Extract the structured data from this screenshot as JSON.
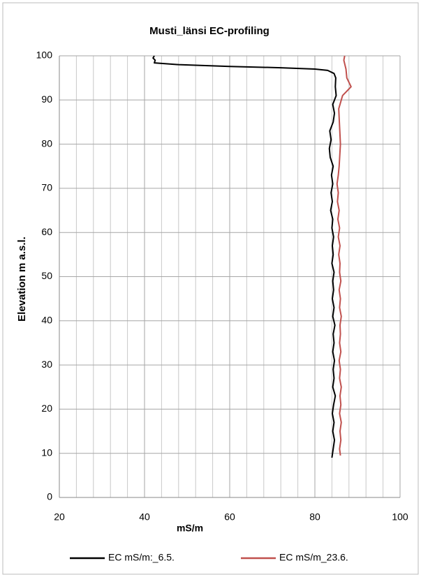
{
  "chart_data": {
    "type": "line",
    "title": "Musti_länsi EC-profiling",
    "x_label": "mS/m",
    "y_label": "Elevation m a.s.l.",
    "xlim": [
      20,
      100
    ],
    "xticks": [
      20,
      40,
      60,
      80,
      100
    ],
    "x_minor_grid": [
      24,
      28,
      32,
      36,
      44,
      48,
      52,
      56,
      64,
      68,
      72,
      76,
      84,
      88,
      92,
      96
    ],
    "ylim": [
      0,
      100
    ],
    "yticks": [
      0,
      10,
      20,
      30,
      40,
      50,
      60,
      70,
      80,
      90,
      100
    ],
    "grid": true,
    "legend": "bottom",
    "series": [
      {
        "name": "EC mS/m:_6.5.",
        "color": "#000000",
        "x": [
          84,
          84.3,
          84.6,
          84.2,
          84.5,
          84.1,
          84.4,
          84.8,
          84.2,
          84.5,
          84.3,
          84.6,
          84.2,
          84.5,
          84.3,
          84.7,
          84.2,
          84.5,
          84.1,
          84.4,
          84.2,
          84.5,
          84.0,
          84.3,
          84.1,
          84.4,
          84.0,
          84.2,
          83.7,
          84.1,
          83.8,
          84.2,
          83.9,
          84.3,
          83.6,
          83.4,
          83.8,
          83.5,
          84.3,
          84.6,
          84.2,
          85.0,
          84.8,
          84.9,
          84.5,
          83,
          80,
          72,
          60,
          48,
          42.3,
          42.5,
          42.0,
          42.3
        ],
        "y": [
          9,
          11,
          13,
          15,
          17,
          19,
          21,
          23,
          25,
          27,
          29,
          31,
          33,
          35,
          37,
          39,
          41,
          43,
          45,
          47,
          49,
          51,
          53,
          55,
          57,
          59,
          61,
          63,
          65,
          67,
          69,
          71,
          73,
          75,
          77,
          79,
          81,
          83,
          85,
          87,
          89,
          91,
          93,
          95,
          96,
          96.7,
          97,
          97.3,
          97.6,
          98,
          98.4,
          99,
          99.5,
          100
        ]
      },
      {
        "name": "EC mS/m_23.6.",
        "color": "#c0504d",
        "x": [
          86,
          85.8,
          86.1,
          85.9,
          86.2,
          85.8,
          86.1,
          85.9,
          86.2,
          85.8,
          86.0,
          85.7,
          86.1,
          85.8,
          86.0,
          85.9,
          86.2,
          85.8,
          86.0,
          85.7,
          86.1,
          85.8,
          85.9,
          85.6,
          85.9,
          85.5,
          85.8,
          85.4,
          85.7,
          85.3,
          85.5,
          85.2,
          85.5,
          85.7,
          86.0,
          85.8,
          85.6,
          86.5,
          87.5,
          88.5,
          88.0,
          87.5,
          87.3,
          86.8,
          87
        ],
        "y": [
          9.5,
          11,
          13,
          15,
          17,
          19,
          21,
          23,
          25,
          27,
          29,
          31,
          33,
          35,
          37,
          39,
          41,
          43,
          45,
          47,
          49,
          51,
          53,
          55,
          57,
          59,
          61,
          63,
          65,
          67,
          69,
          71,
          73,
          75,
          80,
          84,
          88,
          91,
          92,
          93,
          94,
          95,
          97,
          99,
          100
        ]
      }
    ]
  }
}
